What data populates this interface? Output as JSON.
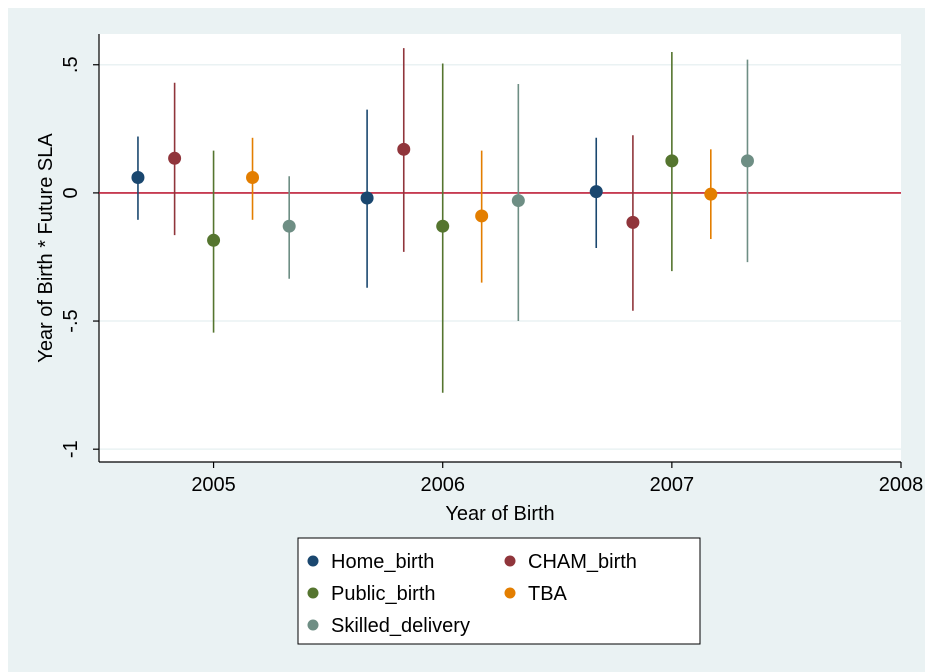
{
  "chart_data": {
    "type": "scatter",
    "subtype": "coefficient plot with confidence intervals",
    "xlabel": "Year of Birth",
    "ylabel": "Year of Birth * Future SLA",
    "xlim": [
      2004.5,
      2008
    ],
    "ylim": [
      -1.05,
      0.62
    ],
    "x_ticks": [
      {
        "value": 2005,
        "label": "2005"
      },
      {
        "value": 2006,
        "label": "2006"
      },
      {
        "value": 2007,
        "label": "2007"
      },
      {
        "value": 2008,
        "label": "2008"
      }
    ],
    "y_ticks": [
      {
        "value": 0.5,
        "label": ".5"
      },
      {
        "value": 0,
        "label": "0"
      },
      {
        "value": -0.5,
        "label": "-.5"
      },
      {
        "value": -1,
        "label": "-1"
      }
    ],
    "reference_line": {
      "y": 0,
      "color": "#c0203a"
    },
    "grid": "horizontal",
    "legend_position": "bottom",
    "series": [
      {
        "name": "Home_birth",
        "color": "#1a476f",
        "points": [
          {
            "x": 2004.67,
            "y": 0.06,
            "lo": -0.105,
            "hi": 0.22
          },
          {
            "x": 2005.67,
            "y": -0.02,
            "lo": -0.37,
            "hi": 0.325
          },
          {
            "x": 2006.67,
            "y": 0.005,
            "lo": -0.215,
            "hi": 0.215
          }
        ]
      },
      {
        "name": "CHAM_birth",
        "color": "#90353b",
        "points": [
          {
            "x": 2004.83,
            "y": 0.135,
            "lo": -0.165,
            "hi": 0.43
          },
          {
            "x": 2005.83,
            "y": 0.17,
            "lo": -0.23,
            "hi": 0.565
          },
          {
            "x": 2006.83,
            "y": -0.115,
            "lo": -0.46,
            "hi": 0.225
          }
        ]
      },
      {
        "name": "Public_birth",
        "color": "#55752f",
        "points": [
          {
            "x": 2005.0,
            "y": -0.185,
            "lo": -0.545,
            "hi": 0.165
          },
          {
            "x": 2006.0,
            "y": -0.13,
            "lo": -0.78,
            "hi": 0.505
          },
          {
            "x": 2007.0,
            "y": 0.125,
            "lo": -0.305,
            "hi": 0.55
          }
        ]
      },
      {
        "name": "TBA",
        "color": "#e37e00",
        "points": [
          {
            "x": 2005.17,
            "y": 0.06,
            "lo": -0.105,
            "hi": 0.215
          },
          {
            "x": 2006.17,
            "y": -0.09,
            "lo": -0.35,
            "hi": 0.165
          },
          {
            "x": 2007.17,
            "y": -0.005,
            "lo": -0.18,
            "hi": 0.17
          }
        ]
      },
      {
        "name": "Skilled_delivery",
        "color": "#6e8e84",
        "points": [
          {
            "x": 2005.33,
            "y": -0.13,
            "lo": -0.335,
            "hi": 0.065
          },
          {
            "x": 2006.33,
            "y": -0.03,
            "lo": -0.5,
            "hi": 0.425
          },
          {
            "x": 2007.33,
            "y": 0.125,
            "lo": -0.27,
            "hi": 0.52
          }
        ]
      }
    ]
  }
}
